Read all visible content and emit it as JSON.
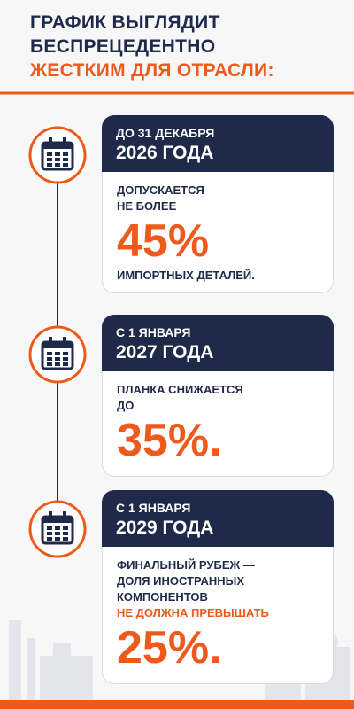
{
  "header": {
    "lines": [
      "ГРАФИК ВЫГЛЯДИТ",
      "БЕСПРЕЦЕДЕНТНО"
    ],
    "highlight": "ЖЕСТКИМ ДЛЯ ОТРАСЛИ:"
  },
  "steps": [
    {
      "date_lines": [
        "ДО 31 ДЕКАБРЯ",
        "2026 ГОДА"
      ],
      "lead_lines": [
        "ДОПУСКАЕТСЯ",
        "НЕ БОЛЕЕ"
      ],
      "figure": "45%",
      "tail_lines": [
        "ИМПОРТНЫХ ДЕТАЛЕЙ."
      ]
    },
    {
      "date_lines": [
        "С 1 ЯНВАРЯ",
        "2027 ГОДА"
      ],
      "lead_lines": [
        "ПЛАНКА СНИЖАЕТСЯ",
        "ДО"
      ],
      "figure": "35%."
    },
    {
      "date_lines": [
        "С 1 ЯНВАРЯ",
        "2029 ГОДА"
      ],
      "lead_lines": [
        "ФИНАЛЬНЫЙ РУБЕЖ —",
        "ДОЛЯ ИНОСТРАННЫХ",
        "КОМПОНЕНТОВ"
      ],
      "accent_lines": [
        "НЕ ДОЛЖНА ПРЕВЫШАТЬ"
      ],
      "figure": "25%."
    }
  ]
}
